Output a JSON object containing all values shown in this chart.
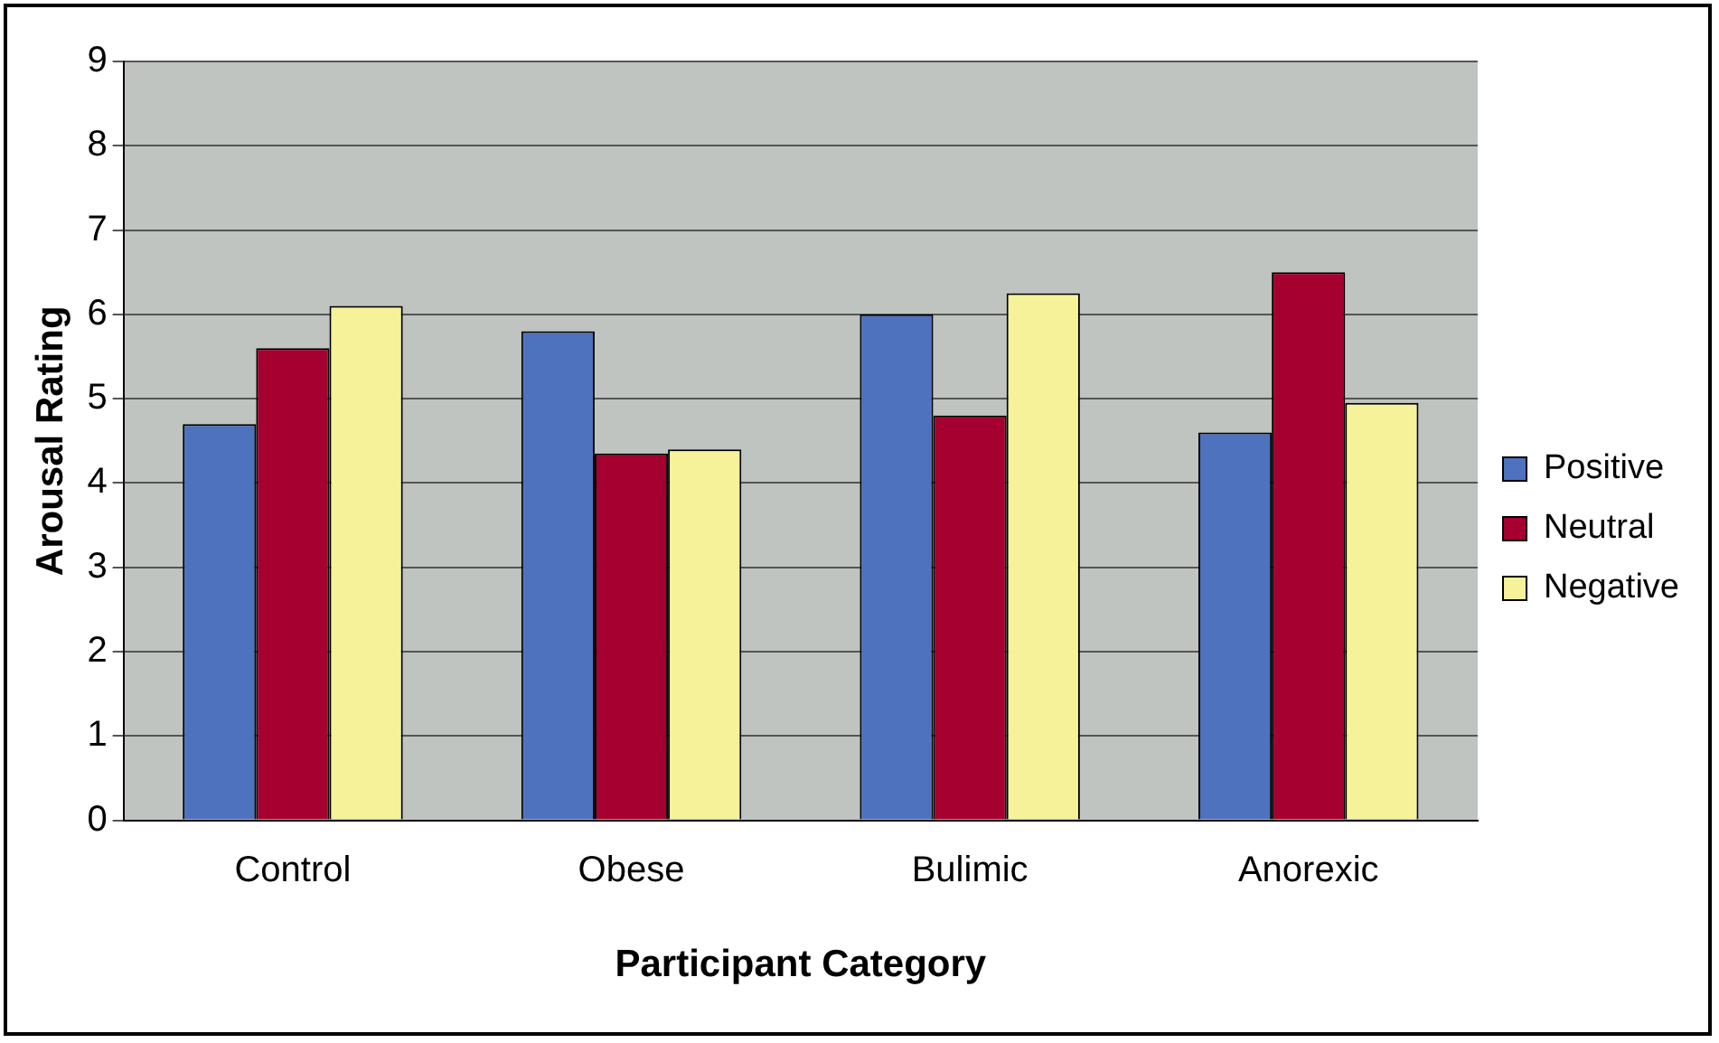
{
  "chart_data": {
    "type": "bar",
    "xlabel": "Participant Category",
    "ylabel": "Arousal Rating",
    "categories": [
      "Control",
      "Obese",
      "Bulimic",
      "Anorexic"
    ],
    "series": [
      {
        "name": "Positive",
        "color": "#4f72be",
        "values": [
          4.7,
          5.8,
          6.0,
          4.6
        ]
      },
      {
        "name": "Neutral",
        "color": "#a50030",
        "values": [
          5.6,
          4.35,
          4.8,
          6.5
        ]
      },
      {
        "name": "Negative",
        "color": "#f5f29a",
        "values": [
          6.1,
          4.4,
          6.25,
          4.95
        ]
      }
    ],
    "ylim": [
      0,
      9
    ],
    "yticks": [
      0,
      1,
      2,
      3,
      4,
      5,
      6,
      7,
      8,
      9
    ],
    "grid": "y",
    "legend": "right"
  }
}
